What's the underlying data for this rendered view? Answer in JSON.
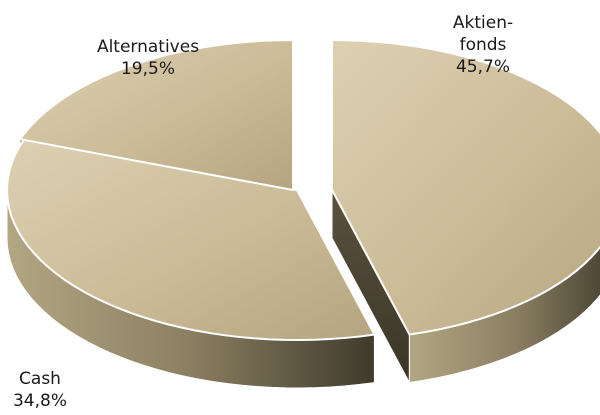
{
  "chart_data": {
    "type": "pie",
    "style": "3d-exploded",
    "slices": [
      {
        "label_lines": [
          "Aktien-",
          "fonds"
        ],
        "value_label": "45,7%",
        "value": 45.7
      },
      {
        "label_lines": [
          "Cash"
        ],
        "value_label": "34,8%",
        "value": 34.8
      },
      {
        "label_lines": [
          "Alternatives"
        ],
        "value_label": "19,5%",
        "value": 19.5
      }
    ],
    "colors": {
      "top": "#cbbb97",
      "top_highlight": "#ddd1b3",
      "top_shadow": "#b4a47f",
      "side_light": "#b3a682",
      "side_mid": "#8b7f62",
      "side_dark": "#3f3a2b",
      "outline": "#ffffff"
    }
  }
}
